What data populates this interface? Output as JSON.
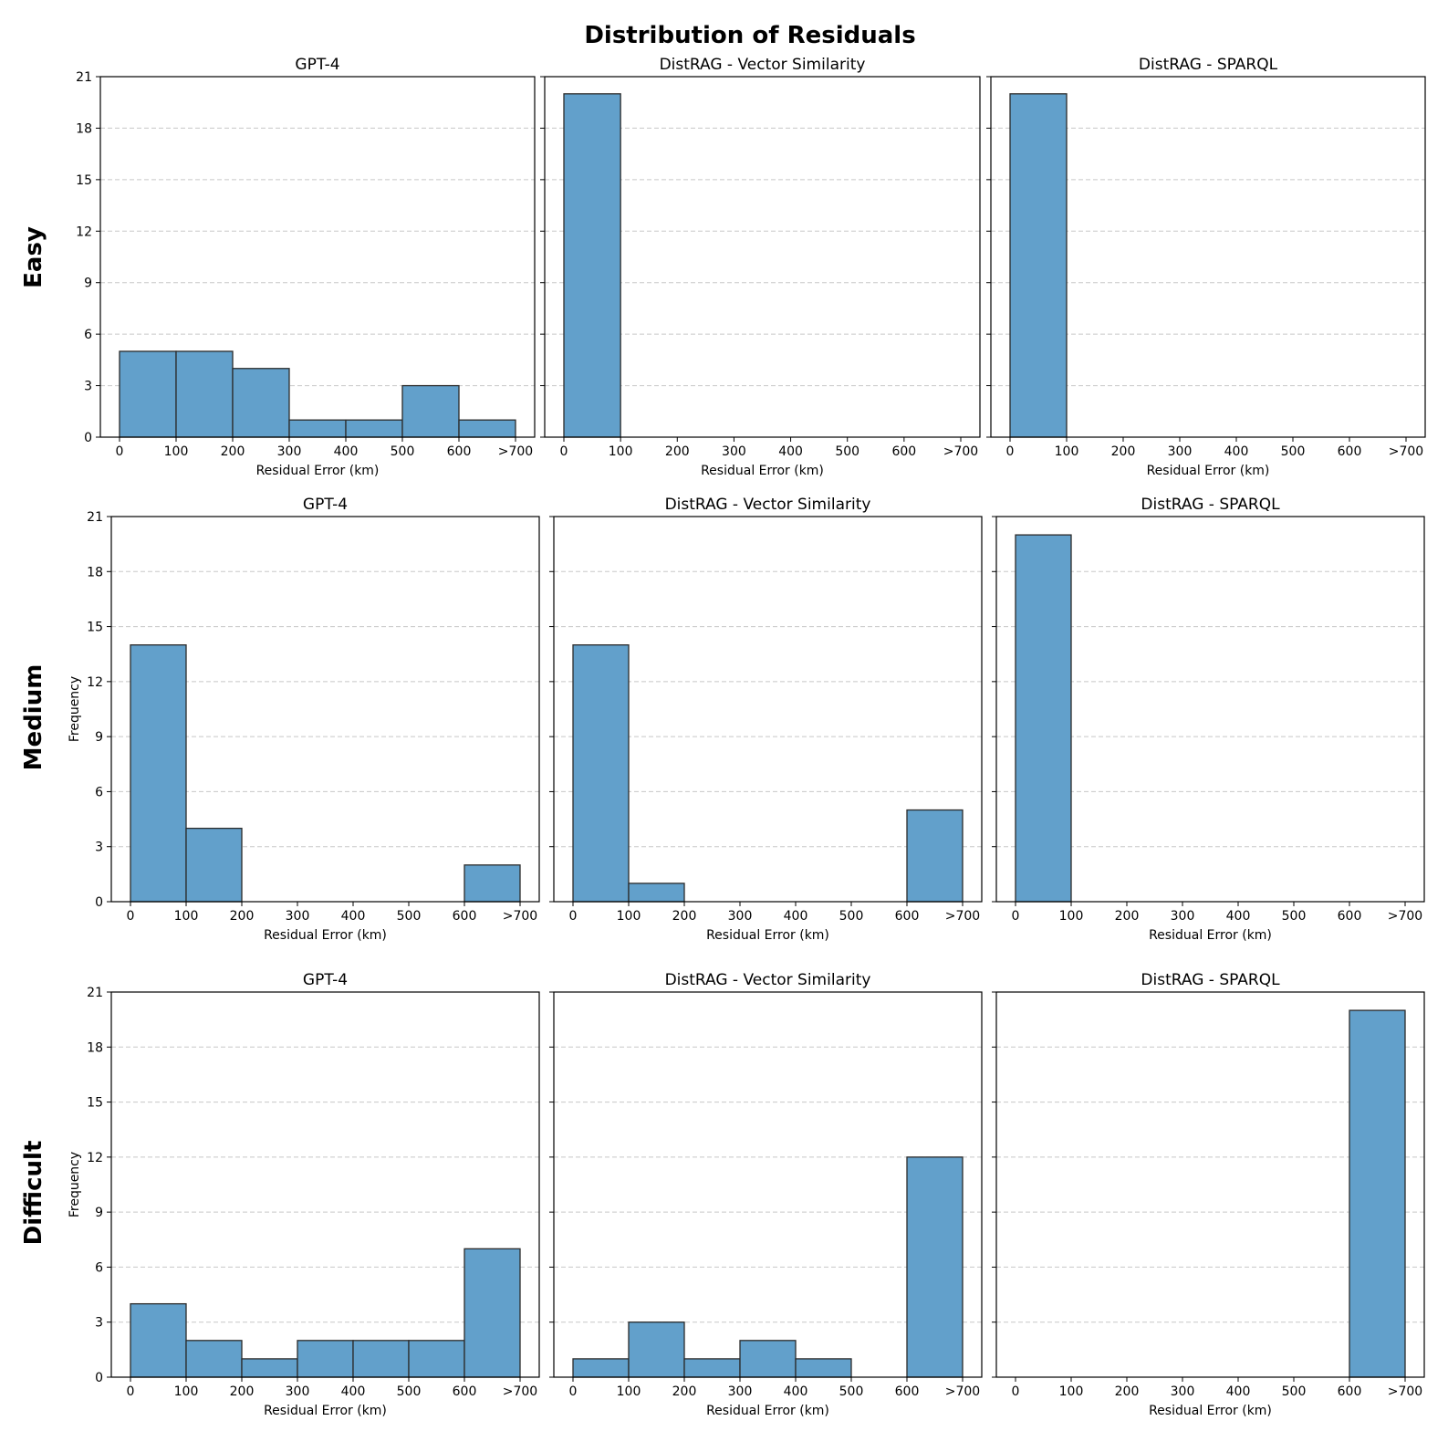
{
  "chart_data": {
    "type": "histogram-grid",
    "title": "Distribution of Residuals",
    "bin_edges": [
      0,
      100,
      200,
      300,
      400,
      500,
      600,
      700
    ],
    "x_tick_labels": [
      "0",
      "100",
      "200",
      "300",
      "400",
      "500",
      "600",
      ">700"
    ],
    "xlabel": "Residual Error (km)",
    "ylabel": "Frequency",
    "ylim": [
      0,
      21
    ],
    "y_ticks": [
      0,
      3,
      6,
      9,
      12,
      15,
      18,
      21
    ],
    "grid": "y-dashed",
    "bar_color": "#62a0cb",
    "bar_edge_color": "#2b2b2b",
    "rows": [
      {
        "label": "Easy",
        "show_ylabel": false,
        "panels": [
          {
            "title": "GPT-4",
            "values": [
              5,
              5,
              4,
              1,
              1,
              3,
              1
            ]
          },
          {
            "title": "DistRAG - Vector Similarity",
            "values": [
              20,
              0,
              0,
              0,
              0,
              0,
              0
            ]
          },
          {
            "title": "DistRAG - SPARQL",
            "values": [
              20,
              0,
              0,
              0,
              0,
              0,
              0
            ]
          }
        ]
      },
      {
        "label": "Medium",
        "show_ylabel": true,
        "panels": [
          {
            "title": "GPT-4",
            "values": [
              14,
              4,
              0,
              0,
              0,
              0,
              2
            ]
          },
          {
            "title": "DistRAG - Vector Similarity",
            "values": [
              14,
              1,
              0,
              0,
              0,
              0,
              5
            ]
          },
          {
            "title": "DistRAG - SPARQL",
            "values": [
              20,
              0,
              0,
              0,
              0,
              0,
              0
            ]
          }
        ]
      },
      {
        "label": "Difficult",
        "show_ylabel": true,
        "panels": [
          {
            "title": "GPT-4",
            "values": [
              4,
              2,
              1,
              2,
              2,
              2,
              7
            ]
          },
          {
            "title": "DistRAG - Vector Similarity",
            "values": [
              1,
              3,
              1,
              2,
              1,
              0,
              12
            ]
          },
          {
            "title": "DistRAG - SPARQL",
            "values": [
              0,
              0,
              0,
              0,
              0,
              0,
              20
            ]
          }
        ]
      }
    ]
  }
}
